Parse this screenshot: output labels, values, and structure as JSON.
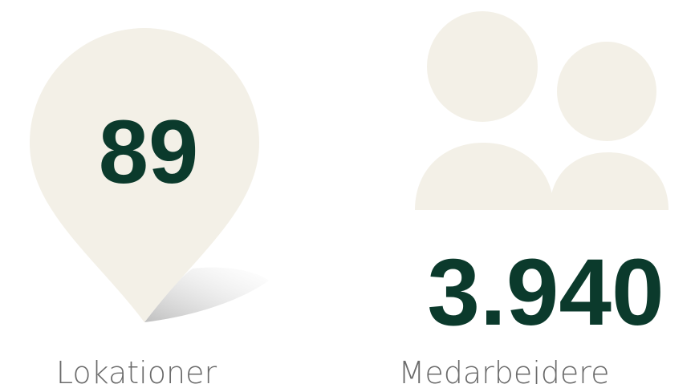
{
  "stats": [
    {
      "value": "89",
      "label": "Lokationer"
    },
    {
      "value": "3.940",
      "label": "Medarbejdere"
    }
  ]
}
